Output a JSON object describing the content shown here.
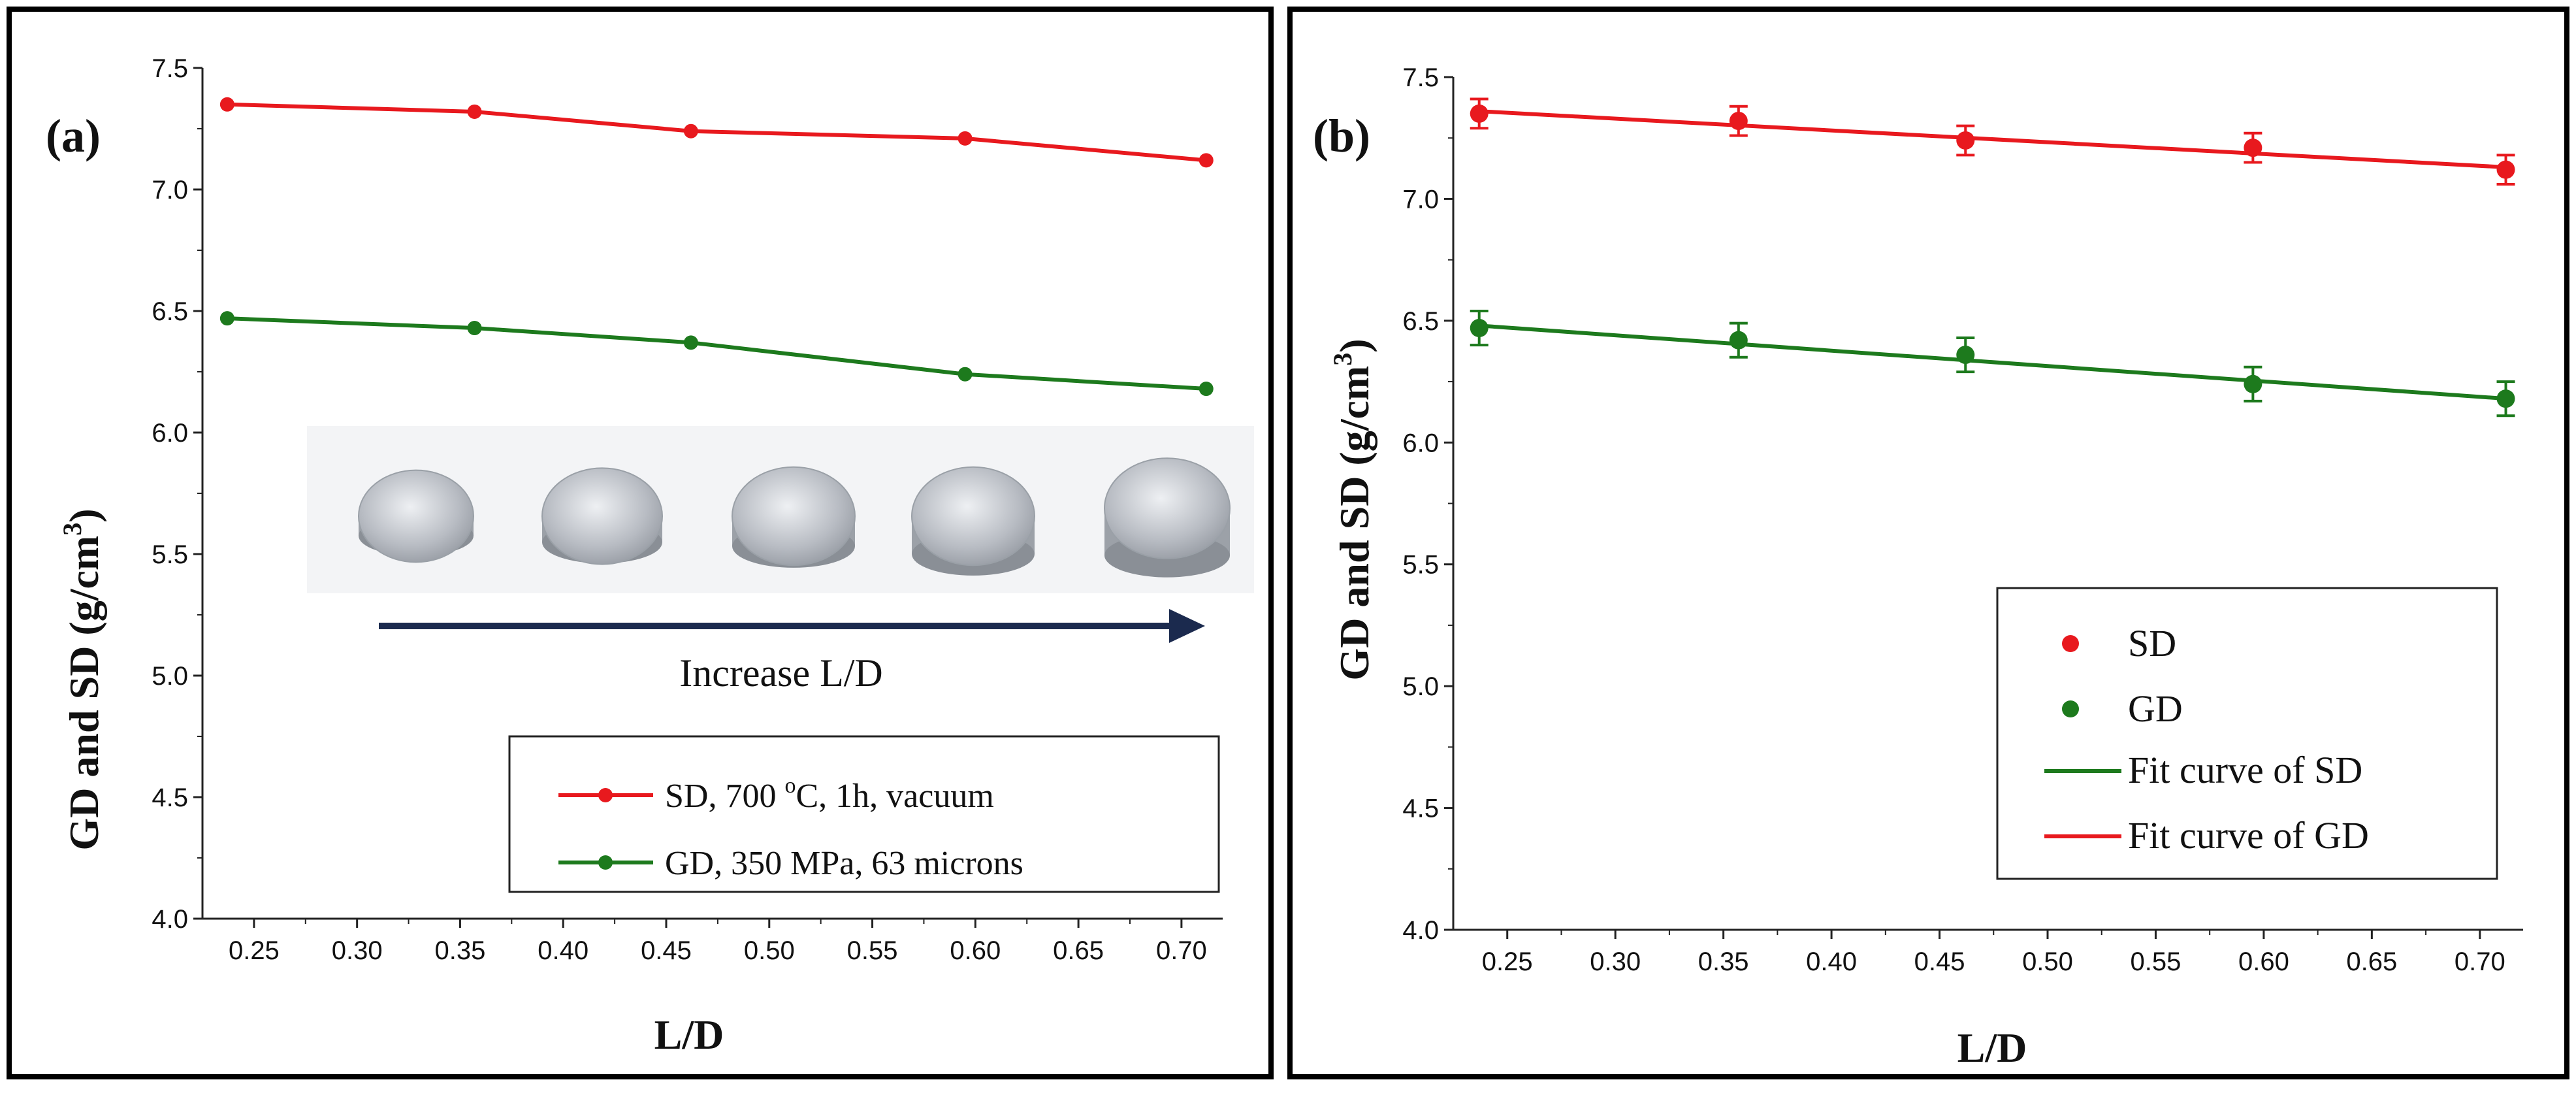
{
  "chart_data": [
    {
      "id": "a",
      "type": "line",
      "panel_label": "(a)",
      "xlabel": "L/D",
      "ylabel": "GD and SD (g/cm",
      "ylabel_sup": "3",
      "ylabel_close": ")",
      "xlim": [
        0.225,
        0.72
      ],
      "ylim": [
        4.0,
        7.5
      ],
      "xticks": [
        0.25,
        0.3,
        0.35,
        0.4,
        0.45,
        0.5,
        0.55,
        0.6,
        0.65,
        0.7
      ],
      "xtick_labels": [
        "0.25",
        "0.30",
        "0.35",
        "0.40",
        "0.45",
        "0.50",
        "0.55",
        "0.60",
        "0.65",
        "0.70"
      ],
      "yticks": [
        4.0,
        4.5,
        5.0,
        5.5,
        6.0,
        6.5,
        7.0,
        7.5
      ],
      "ytick_labels": [
        "4.0",
        "4.5",
        "5.0",
        "5.5",
        "6.0",
        "6.5",
        "7.0",
        "7.5"
      ],
      "x": [
        0.237,
        0.357,
        0.462,
        0.595,
        0.712
      ],
      "series": [
        {
          "key": "sd",
          "name": "SD, 700 ",
          "name_sup": "o",
          "name_rest": "C, 1h, vacuum",
          "color": "#e8191e",
          "values": [
            7.35,
            7.32,
            7.24,
            7.21,
            7.12
          ]
        },
        {
          "key": "gd",
          "name": "GD, 350 MPa, 63 microns",
          "color": "#1d7a1d",
          "values": [
            6.47,
            6.43,
            6.37,
            6.24,
            6.18
          ]
        }
      ],
      "annotation": "Increase L/D",
      "legend_position": "bottom-right"
    },
    {
      "id": "b",
      "type": "scatter",
      "panel_label": "(b)",
      "xlabel": "L/D",
      "ylabel": "GD and SD (g/cm",
      "ylabel_sup": "3",
      "ylabel_close": ")",
      "xlim": [
        0.225,
        0.72
      ],
      "ylim": [
        4.0,
        7.5
      ],
      "xticks": [
        0.25,
        0.3,
        0.35,
        0.4,
        0.45,
        0.5,
        0.55,
        0.6,
        0.65,
        0.7
      ],
      "xtick_labels": [
        "0.25",
        "0.30",
        "0.35",
        "0.40",
        "0.45",
        "0.50",
        "0.55",
        "0.60",
        "0.65",
        "0.70"
      ],
      "yticks": [
        4.0,
        4.5,
        5.0,
        5.5,
        6.0,
        6.5,
        7.0,
        7.5
      ],
      "ytick_labels": [
        "4.0",
        "4.5",
        "5.0",
        "5.5",
        "6.0",
        "6.5",
        "7.0",
        "7.5"
      ],
      "x": [
        0.237,
        0.357,
        0.462,
        0.595,
        0.712
      ],
      "series": [
        {
          "key": "sd",
          "name": "SD",
          "color": "#e8191e",
          "values": [
            7.35,
            7.32,
            7.24,
            7.21,
            7.12
          ],
          "error": [
            0.06,
            0.06,
            0.06,
            0.06,
            0.06
          ]
        },
        {
          "key": "gd",
          "name": "GD",
          "color": "#1d7a1d",
          "values": [
            6.47,
            6.42,
            6.36,
            6.24,
            6.18
          ],
          "error": [
            0.07,
            0.07,
            0.07,
            0.07,
            0.07
          ]
        }
      ],
      "fits": [
        {
          "key": "fit_sd",
          "name": "Fit curve of SD",
          "color": "#1d7a1d",
          "start": 6.48,
          "end": 6.18
        },
        {
          "key": "fit_gd",
          "name": "Fit curve of GD",
          "color": "#e8191e",
          "start": 7.36,
          "end": 7.13
        }
      ],
      "legend_position": "bottom-right"
    }
  ]
}
